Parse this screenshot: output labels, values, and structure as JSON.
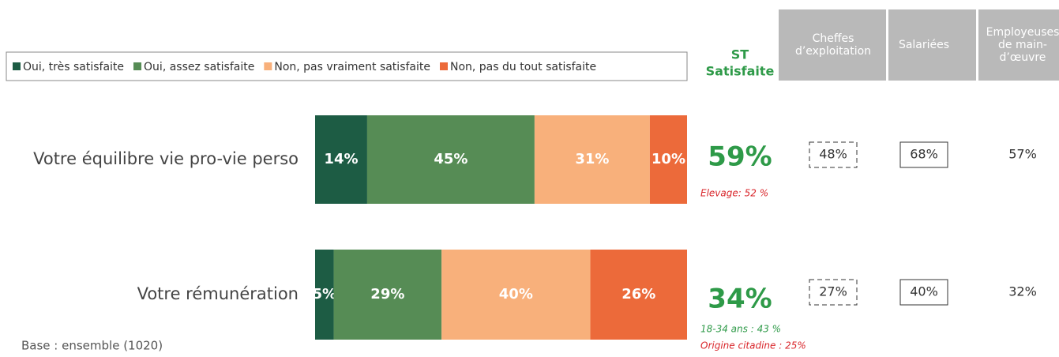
{
  "chart_data": {
    "type": "bar",
    "orientation": "horizontal",
    "stacked": true,
    "categories": [
      "Votre équilibre vie pro-vie perso",
      "Votre rémunération"
    ],
    "xlim": [
      0,
      100
    ],
    "series": [
      {
        "name": "Oui, très satisfaite",
        "color": "#1d5c44",
        "values": [
          14,
          5
        ],
        "value_labels": [
          "14%",
          "5%"
        ]
      },
      {
        "name": "Oui, assez satisfaite",
        "color": "#568c55",
        "values": [
          45,
          29
        ],
        "value_labels": [
          "45%",
          "29%"
        ]
      },
      {
        "name": "Non, pas vraiment satisfaite",
        "color": "#f8b07b",
        "values": [
          31,
          40
        ],
        "value_labels": [
          "31%",
          "40%"
        ]
      },
      {
        "name": "Non, pas du tout satisfaite",
        "color": "#ec6a3a",
        "values": [
          10,
          26
        ],
        "value_labels": [
          "10%",
          "26%"
        ]
      }
    ]
  },
  "st_satisfaite": {
    "header": [
      "ST",
      "Satisfaite"
    ],
    "color": "#2e9a48",
    "values": [
      59,
      34
    ],
    "value_labels": [
      "59%",
      "34%"
    ],
    "notes": [
      [
        {
          "text": "Elevage: 52 %",
          "color": "#d9262b"
        }
      ],
      [
        {
          "text": "18-34 ans : 43 %",
          "color": "#2e9a48"
        },
        {
          "text": "Origine citadine : 25%",
          "color": "#d9262b"
        }
      ]
    ]
  },
  "segments": [
    {
      "header": [
        "Cheffes",
        "d’exploitation"
      ],
      "values": [
        "48%",
        "27%"
      ],
      "box": "dashed"
    },
    {
      "header": [
        "Salariées"
      ],
      "values": [
        "68%",
        "40%"
      ],
      "box": "solid"
    },
    {
      "header": [
        "Employeuses",
        "de main-",
        "d’œuvre"
      ],
      "values": [
        "57%",
        "32%"
      ],
      "box": "none"
    }
  ],
  "base": "Base : ensemble (1020)"
}
